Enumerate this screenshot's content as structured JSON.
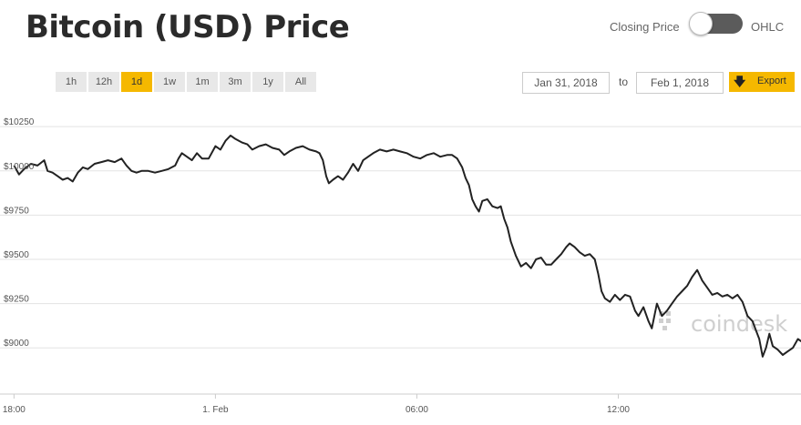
{
  "header": {
    "title": "Bitcoin (USD) Price",
    "closing_label": "Closing Price",
    "ohlc_label": "OHLC"
  },
  "ranges": [
    {
      "label": "1h",
      "active": false
    },
    {
      "label": "12h",
      "active": false
    },
    {
      "label": "1d",
      "active": true
    },
    {
      "label": "1w",
      "active": false
    },
    {
      "label": "1m",
      "active": false
    },
    {
      "label": "3m",
      "active": false
    },
    {
      "label": "1y",
      "active": false
    },
    {
      "label": "All",
      "active": false
    }
  ],
  "dates": {
    "from": "Jan 31, 2018",
    "to_label": "to",
    "to": "Feb 1, 2018"
  },
  "export": {
    "label": "Export",
    "icon": "download-arrow-icon"
  },
  "watermark": {
    "text": "coindesk"
  },
  "colors": {
    "accent": "#f5b800",
    "line": "#222222",
    "grid": "#e3e3e3"
  },
  "chart_data": {
    "type": "line",
    "title": "Bitcoin (USD) Price",
    "xlabel": "",
    "ylabel": "",
    "x_ticks": [
      {
        "label": "18:00",
        "hour": 0
      },
      {
        "label": "1. Feb",
        "hour": 6
      },
      {
        "label": "06:00",
        "hour": 12
      },
      {
        "label": "12:00",
        "hour": 18
      }
    ],
    "y_ticks": [
      {
        "label": "$9000",
        "value": 9000
      },
      {
        "label": "$9250",
        "value": 9250
      },
      {
        "label": "$9500",
        "value": 9500
      },
      {
        "label": "$9750",
        "value": 9750
      },
      {
        "label": "$10000",
        "value": 10000
      },
      {
        "label": "$10250",
        "value": 10250
      }
    ],
    "ylim": [
      8780,
      10400
    ],
    "xlim": [
      -0.2,
      23.6
    ],
    "grid": true,
    "legend": "none",
    "series": [
      {
        "name": "",
        "points": [
          [
            0,
            10030
          ],
          [
            0.15,
            9980
          ],
          [
            0.3,
            10010
          ],
          [
            0.5,
            10040
          ],
          [
            0.7,
            10030
          ],
          [
            0.9,
            10060
          ],
          [
            1.0,
            10000
          ],
          [
            1.15,
            9990
          ],
          [
            1.3,
            9970
          ],
          [
            1.45,
            9950
          ],
          [
            1.6,
            9960
          ],
          [
            1.75,
            9940
          ],
          [
            1.9,
            9990
          ],
          [
            2.05,
            10020
          ],
          [
            2.2,
            10010
          ],
          [
            2.4,
            10040
          ],
          [
            2.6,
            10050
          ],
          [
            2.8,
            10060
          ],
          [
            3.0,
            10050
          ],
          [
            3.2,
            10070
          ],
          [
            3.35,
            10030
          ],
          [
            3.5,
            10000
          ],
          [
            3.65,
            9990
          ],
          [
            3.8,
            10000
          ],
          [
            4.0,
            10000
          ],
          [
            4.2,
            9990
          ],
          [
            4.4,
            10000
          ],
          [
            4.6,
            10010
          ],
          [
            4.8,
            10030
          ],
          [
            4.9,
            10070
          ],
          [
            5.0,
            10100
          ],
          [
            5.15,
            10080
          ],
          [
            5.3,
            10060
          ],
          [
            5.45,
            10100
          ],
          [
            5.6,
            10070
          ],
          [
            5.8,
            10070
          ],
          [
            6.0,
            10140
          ],
          [
            6.15,
            10120
          ],
          [
            6.3,
            10170
          ],
          [
            6.45,
            10200
          ],
          [
            6.6,
            10180
          ],
          [
            6.8,
            10160
          ],
          [
            6.95,
            10150
          ],
          [
            7.1,
            10120
          ],
          [
            7.3,
            10140
          ],
          [
            7.5,
            10150
          ],
          [
            7.7,
            10130
          ],
          [
            7.9,
            10120
          ],
          [
            8.05,
            10090
          ],
          [
            8.2,
            10110
          ],
          [
            8.4,
            10130
          ],
          [
            8.6,
            10140
          ],
          [
            8.8,
            10120
          ],
          [
            9.0,
            10110
          ],
          [
            9.1,
            10100
          ],
          [
            9.2,
            10060
          ],
          [
            9.3,
            9970
          ],
          [
            9.38,
            9930
          ],
          [
            9.5,
            9950
          ],
          [
            9.65,
            9970
          ],
          [
            9.8,
            9950
          ],
          [
            9.95,
            9990
          ],
          [
            10.1,
            10040
          ],
          [
            10.25,
            10000
          ],
          [
            10.4,
            10060
          ],
          [
            10.55,
            10080
          ],
          [
            10.7,
            10100
          ],
          [
            10.9,
            10120
          ],
          [
            11.1,
            10110
          ],
          [
            11.3,
            10120
          ],
          [
            11.5,
            10110
          ],
          [
            11.7,
            10100
          ],
          [
            11.9,
            10080
          ],
          [
            12.1,
            10070
          ],
          [
            12.3,
            10090
          ],
          [
            12.5,
            10100
          ],
          [
            12.7,
            10080
          ],
          [
            12.9,
            10090
          ],
          [
            13.05,
            10090
          ],
          [
            13.2,
            10070
          ],
          [
            13.35,
            10020
          ],
          [
            13.45,
            9960
          ],
          [
            13.55,
            9920
          ],
          [
            13.65,
            9840
          ],
          [
            13.75,
            9800
          ],
          [
            13.85,
            9770
          ],
          [
            13.95,
            9830
          ],
          [
            14.1,
            9840
          ],
          [
            14.25,
            9800
          ],
          [
            14.4,
            9790
          ],
          [
            14.5,
            9800
          ],
          [
            14.6,
            9730
          ],
          [
            14.7,
            9680
          ],
          [
            14.8,
            9600
          ],
          [
            14.95,
            9520
          ],
          [
            15.1,
            9460
          ],
          [
            15.25,
            9480
          ],
          [
            15.4,
            9450
          ],
          [
            15.55,
            9500
          ],
          [
            15.7,
            9510
          ],
          [
            15.85,
            9470
          ],
          [
            16.0,
            9470
          ],
          [
            16.15,
            9500
          ],
          [
            16.3,
            9530
          ],
          [
            16.45,
            9570
          ],
          [
            16.55,
            9590
          ],
          [
            16.7,
            9570
          ],
          [
            16.85,
            9540
          ],
          [
            17.0,
            9520
          ],
          [
            17.15,
            9530
          ],
          [
            17.3,
            9500
          ],
          [
            17.4,
            9420
          ],
          [
            17.5,
            9320
          ],
          [
            17.6,
            9280
          ],
          [
            17.75,
            9260
          ],
          [
            17.9,
            9300
          ],
          [
            18.05,
            9270
          ],
          [
            18.2,
            9300
          ],
          [
            18.35,
            9290
          ],
          [
            18.5,
            9210
          ],
          [
            18.6,
            9180
          ],
          [
            18.75,
            9230
          ],
          [
            18.9,
            9150
          ],
          [
            19.0,
            9110
          ],
          [
            19.15,
            9250
          ],
          [
            19.3,
            9180
          ],
          [
            19.45,
            9210
          ],
          [
            19.6,
            9250
          ],
          [
            19.75,
            9290
          ],
          [
            19.9,
            9320
          ],
          [
            20.05,
            9350
          ],
          [
            20.2,
            9400
          ],
          [
            20.35,
            9440
          ],
          [
            20.5,
            9380
          ],
          [
            20.65,
            9340
          ],
          [
            20.8,
            9300
          ],
          [
            20.95,
            9310
          ],
          [
            21.1,
            9290
          ],
          [
            21.25,
            9300
          ],
          [
            21.4,
            9280
          ],
          [
            21.55,
            9300
          ],
          [
            21.7,
            9260
          ],
          [
            21.85,
            9180
          ],
          [
            22.0,
            9150
          ],
          [
            22.1,
            9100
          ],
          [
            22.2,
            9050
          ],
          [
            22.3,
            8950
          ],
          [
            22.4,
            9000
          ],
          [
            22.5,
            9080
          ],
          [
            22.6,
            9010
          ],
          [
            22.75,
            8990
          ],
          [
            22.9,
            8960
          ],
          [
            23.05,
            8980
          ],
          [
            23.2,
            9000
          ],
          [
            23.35,
            9050
          ],
          [
            23.5,
            9030
          ]
        ]
      }
    ]
  }
}
